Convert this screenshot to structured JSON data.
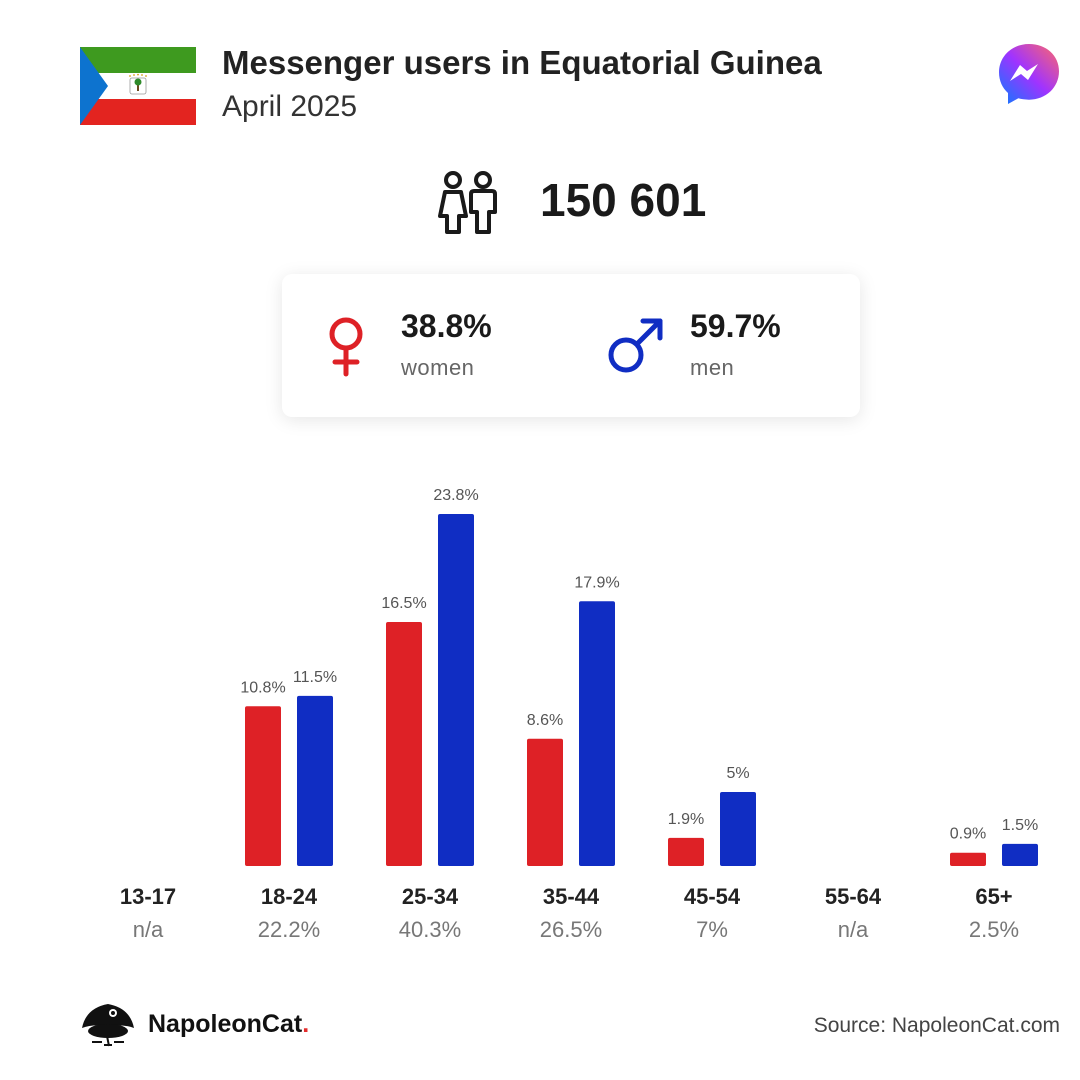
{
  "header": {
    "title": "Messenger users in Equatorial Guinea",
    "date": "April 2025",
    "flag_icon": "equatorial-guinea-flag-icon",
    "app_icon": "messenger-logo-icon"
  },
  "summary": {
    "total_users": "150 601",
    "total_icon": "people-icon"
  },
  "gender": {
    "women_pct": "38.8%",
    "women_label": "women",
    "women_icon": "female-symbol-icon",
    "men_pct": "59.7%",
    "men_label": "men",
    "men_icon": "male-symbol-icon"
  },
  "colors": {
    "women": "#de2126",
    "men": "#102dc3",
    "accent": "#e32b2b"
  },
  "chart_data": {
    "type": "bar",
    "categories": [
      "13-17",
      "18-24",
      "25-34",
      "35-44",
      "45-54",
      "55-64",
      "65+"
    ],
    "category_totals": [
      "n/a",
      "22.2%",
      "40.3%",
      "26.5%",
      "7%",
      "n/a",
      "2.5%"
    ],
    "series": [
      {
        "name": "women",
        "values": [
          null,
          10.8,
          16.5,
          8.6,
          1.9,
          null,
          0.9
        ],
        "labels": [
          null,
          "10.8%",
          "16.5%",
          "8.6%",
          "1.9%",
          null,
          "0.9%"
        ]
      },
      {
        "name": "men",
        "values": [
          null,
          11.5,
          23.8,
          17.9,
          5,
          null,
          1.5
        ],
        "labels": [
          null,
          "11.5%",
          "23.8%",
          "17.9%",
          "5%",
          null,
          "1.5%"
        ]
      }
    ],
    "ylim": [
      0,
      23.8
    ]
  },
  "footer": {
    "brand_name": "NapoleonCat",
    "brand_dot": ".",
    "source": "Source: NapoleonCat.com",
    "logo_icon": "napoleoncat-logo-icon"
  }
}
